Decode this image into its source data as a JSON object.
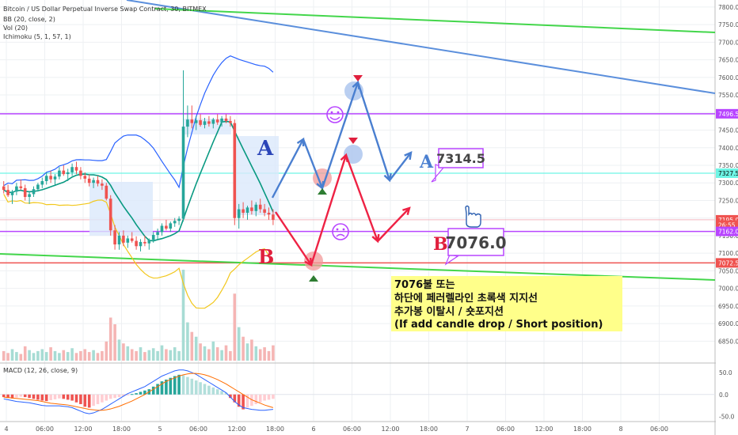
{
  "header": {
    "symbol_line": "Bitcoin / US Dollar Perpetual Inverse Swap Contract, 30, BITMEX",
    "indicators": [
      "BB (20, close, 2)",
      "Vol (20)",
      "Ichimoku (5, 1, 57, 1)"
    ]
  },
  "macd": {
    "label": "MACD (12, 26, close, 9)"
  },
  "colors": {
    "up": "#26a69a",
    "down": "#ef5350",
    "bb": "#2962ff",
    "bbLower": "#f2c71b",
    "ichimoku": "#089981",
    "purple": "#b845ff",
    "green": "#43d64b",
    "blueLine": "#5b8fdc",
    "cyan": "#6ef5e5",
    "arrowBlue": "#4a7fd0",
    "arrowRed": "#ee2244",
    "note": "#ffff8a"
  },
  "annotations": {
    "label_a": "A",
    "label_b": "B",
    "box_a_price": "7314.5",
    "box_b_price": "7076.0",
    "note_lines": [
      "7076불 또는",
      "하단에 페러렐라인 초록색 지지선",
      "추가봉 이탈시 / 숏포지션",
      "(If add candle drop / Short position)"
    ]
  },
  "chart_data": {
    "type": "candlestick",
    "price_axis": {
      "ylim": [
        6790,
        7820
      ],
      "ticks": [
        "7800.0",
        "7750.0",
        "7700.0",
        "7650.0",
        "7600.0",
        "7550.0",
        "7500.0",
        "7450.0",
        "7400.0",
        "7350.0",
        "7300.0",
        "7250.0",
        "7200.0",
        "7150.0",
        "7100.0",
        "7050.0",
        "7000.0",
        "6950.0",
        "6900.0",
        "6850.0"
      ]
    },
    "price_labels": [
      {
        "text": "7496.5",
        "value": 7496.5,
        "color": "#b845ff"
      },
      {
        "text": "7327.5",
        "value": 7327.5,
        "color": "#6ef5e5"
      },
      {
        "text": "7195.0",
        "value": 7195.0,
        "color": "#ef5350"
      },
      {
        "text": "26:55",
        "value": 7180.0,
        "color": "#ef5350"
      },
      {
        "text": "7162.0",
        "value": 7162.0,
        "color": "#b845ff"
      },
      {
        "text": "7072.5",
        "value": 7072.5,
        "color": "#ef5350"
      }
    ],
    "macd_axis": {
      "ylim": [
        -60,
        70
      ],
      "ticks": [
        "50.0",
        "0.0",
        "-50.0"
      ]
    },
    "x_ticks": [
      "4",
      "06:00",
      "12:00",
      "18:00",
      "5",
      "06:00",
      "12:00",
      "18:00",
      "6",
      "06:00",
      "12:00",
      "18:00",
      "7",
      "06:00",
      "12:00",
      "18:00",
      "8",
      "06:00"
    ],
    "horizontal_levels": [
      7496.5,
      7327.5,
      7162.0,
      7072.5
    ],
    "candles": [
      [
        7290,
        7305,
        7270,
        7280
      ],
      [
        7280,
        7295,
        7260,
        7265
      ],
      [
        7265,
        7280,
        7240,
        7275
      ],
      [
        7275,
        7300,
        7265,
        7290
      ],
      [
        7290,
        7310,
        7280,
        7285
      ],
      [
        7285,
        7295,
        7250,
        7260
      ],
      [
        7260,
        7275,
        7240,
        7268
      ],
      [
        7268,
        7290,
        7260,
        7282
      ],
      [
        7282,
        7300,
        7275,
        7295
      ],
      [
        7295,
        7315,
        7285,
        7305
      ],
      [
        7305,
        7330,
        7295,
        7320
      ],
      [
        7320,
        7335,
        7300,
        7310
      ],
      [
        7310,
        7325,
        7295,
        7318
      ],
      [
        7318,
        7345,
        7310,
        7335
      ],
      [
        7335,
        7350,
        7320,
        7325
      ],
      [
        7325,
        7340,
        7305,
        7330
      ],
      [
        7330,
        7355,
        7320,
        7345
      ],
      [
        7345,
        7360,
        7325,
        7335
      ],
      [
        7335,
        7345,
        7310,
        7320
      ],
      [
        7320,
        7330,
        7300,
        7312
      ],
      [
        7312,
        7325,
        7290,
        7300
      ],
      [
        7300,
        7315,
        7285,
        7308
      ],
      [
        7308,
        7320,
        7290,
        7298
      ],
      [
        7298,
        7310,
        7280,
        7292
      ],
      [
        7292,
        7300,
        7250,
        7255
      ],
      [
        7255,
        7265,
        7150,
        7165
      ],
      [
        7165,
        7180,
        7110,
        7125
      ],
      [
        7125,
        7160,
        7110,
        7150
      ],
      [
        7150,
        7165,
        7120,
        7130
      ],
      [
        7130,
        7150,
        7115,
        7142
      ],
      [
        7142,
        7160,
        7130,
        7135
      ],
      [
        7135,
        7148,
        7110,
        7120
      ],
      [
        7120,
        7140,
        7105,
        7132
      ],
      [
        7132,
        7150,
        7120,
        7128
      ],
      [
        7128,
        7142,
        7110,
        7138
      ],
      [
        7138,
        7160,
        7130,
        7152
      ],
      [
        7152,
        7170,
        7140,
        7160
      ],
      [
        7160,
        7185,
        7150,
        7178
      ],
      [
        7178,
        7195,
        7165,
        7170
      ],
      [
        7170,
        7190,
        7160,
        7185
      ],
      [
        7185,
        7200,
        7175,
        7192
      ],
      [
        7192,
        7205,
        7180,
        7198
      ],
      [
        7198,
        7620,
        7190,
        7460
      ],
      [
        7460,
        7520,
        7430,
        7480
      ],
      [
        7480,
        7520,
        7455,
        7470
      ],
      [
        7470,
        7490,
        7450,
        7478
      ],
      [
        7478,
        7495,
        7460,
        7465
      ],
      [
        7465,
        7485,
        7455,
        7475
      ],
      [
        7475,
        7490,
        7460,
        7468
      ],
      [
        7468,
        7485,
        7455,
        7480
      ],
      [
        7480,
        7495,
        7465,
        7472
      ],
      [
        7472,
        7490,
        7460,
        7483
      ],
      [
        7483,
        7495,
        7470,
        7476
      ],
      [
        7476,
        7490,
        7460,
        7470
      ],
      [
        7470,
        7480,
        7180,
        7200
      ],
      [
        7200,
        7240,
        7170,
        7225
      ],
      [
        7225,
        7245,
        7200,
        7215
      ],
      [
        7215,
        7235,
        7195,
        7230
      ],
      [
        7230,
        7250,
        7210,
        7220
      ],
      [
        7220,
        7245,
        7205,
        7238
      ],
      [
        7238,
        7255,
        7215,
        7225
      ],
      [
        7225,
        7240,
        7205,
        7215
      ],
      [
        7215,
        7230,
        7195,
        7210
      ],
      [
        7210,
        7225,
        7180,
        7195
      ]
    ],
    "volumes": [
      10,
      8,
      12,
      9,
      7,
      15,
      11,
      8,
      10,
      12,
      9,
      14,
      10,
      8,
      11,
      9,
      13,
      8,
      10,
      12,
      9,
      11,
      8,
      10,
      20,
      45,
      38,
      22,
      18,
      15,
      12,
      10,
      14,
      9,
      11,
      13,
      10,
      16,
      12,
      11,
      14,
      10,
      95,
      40,
      30,
      25,
      18,
      15,
      12,
      20,
      14,
      11,
      16,
      10,
      70,
      35,
      25,
      18,
      22,
      15,
      12,
      14,
      10,
      16
    ],
    "macd_hist": [
      -6,
      -8,
      -9,
      -7,
      -5,
      -6,
      -8,
      -10,
      -12,
      -14,
      -15,
      -13,
      -11,
      -9,
      -10,
      -12,
      -14,
      -18,
      -22,
      -28,
      -30,
      -26,
      -22,
      -18,
      -14,
      -10,
      -8,
      -6,
      -4,
      -2,
      1,
      3,
      6,
      9,
      12,
      18,
      24,
      30,
      34,
      38,
      42,
      45,
      44,
      40,
      36,
      32,
      28,
      24,
      20,
      16,
      12,
      8,
      4,
      -8,
      -18,
      -28,
      -34,
      -30,
      -26,
      -22,
      -18,
      -14,
      -12,
      -10
    ],
    "macd_line": [
      -10,
      -12,
      -14,
      -16,
      -17,
      -18,
      -19,
      -21,
      -23,
      -25,
      -26,
      -26,
      -26,
      -26,
      -27,
      -28,
      -30,
      -34,
      -38,
      -42,
      -44,
      -42,
      -38,
      -34,
      -28,
      -22,
      -16,
      -10,
      -4,
      2,
      6,
      10,
      14,
      18,
      24,
      30,
      36,
      42,
      46,
      50,
      54,
      56,
      56,
      54,
      50,
      46,
      40,
      34,
      28,
      22,
      16,
      10,
      4,
      -6,
      -16,
      -24,
      -30,
      -32,
      -34,
      -35,
      -36,
      -36,
      -35,
      -34
    ],
    "signal_line": [
      -6,
      -7,
      -8,
      -9,
      -10,
      -11,
      -12,
      -13,
      -14,
      -16,
      -18,
      -20,
      -21,
      -22,
      -23,
      -24,
      -26,
      -28,
      -30,
      -32,
      -34,
      -35,
      -36,
      -36,
      -35,
      -33,
      -30,
      -27,
      -23,
      -19,
      -15,
      -10,
      -5,
      0,
      6,
      12,
      18,
      24,
      30,
      34,
      38,
      42,
      45,
      47,
      48,
      48,
      47,
      45,
      42,
      38,
      34,
      29,
      24,
      18,
      12,
      6,
      0,
      -6,
      -12,
      -16,
      -20,
      -24,
      -27,
      -30
    ]
  }
}
